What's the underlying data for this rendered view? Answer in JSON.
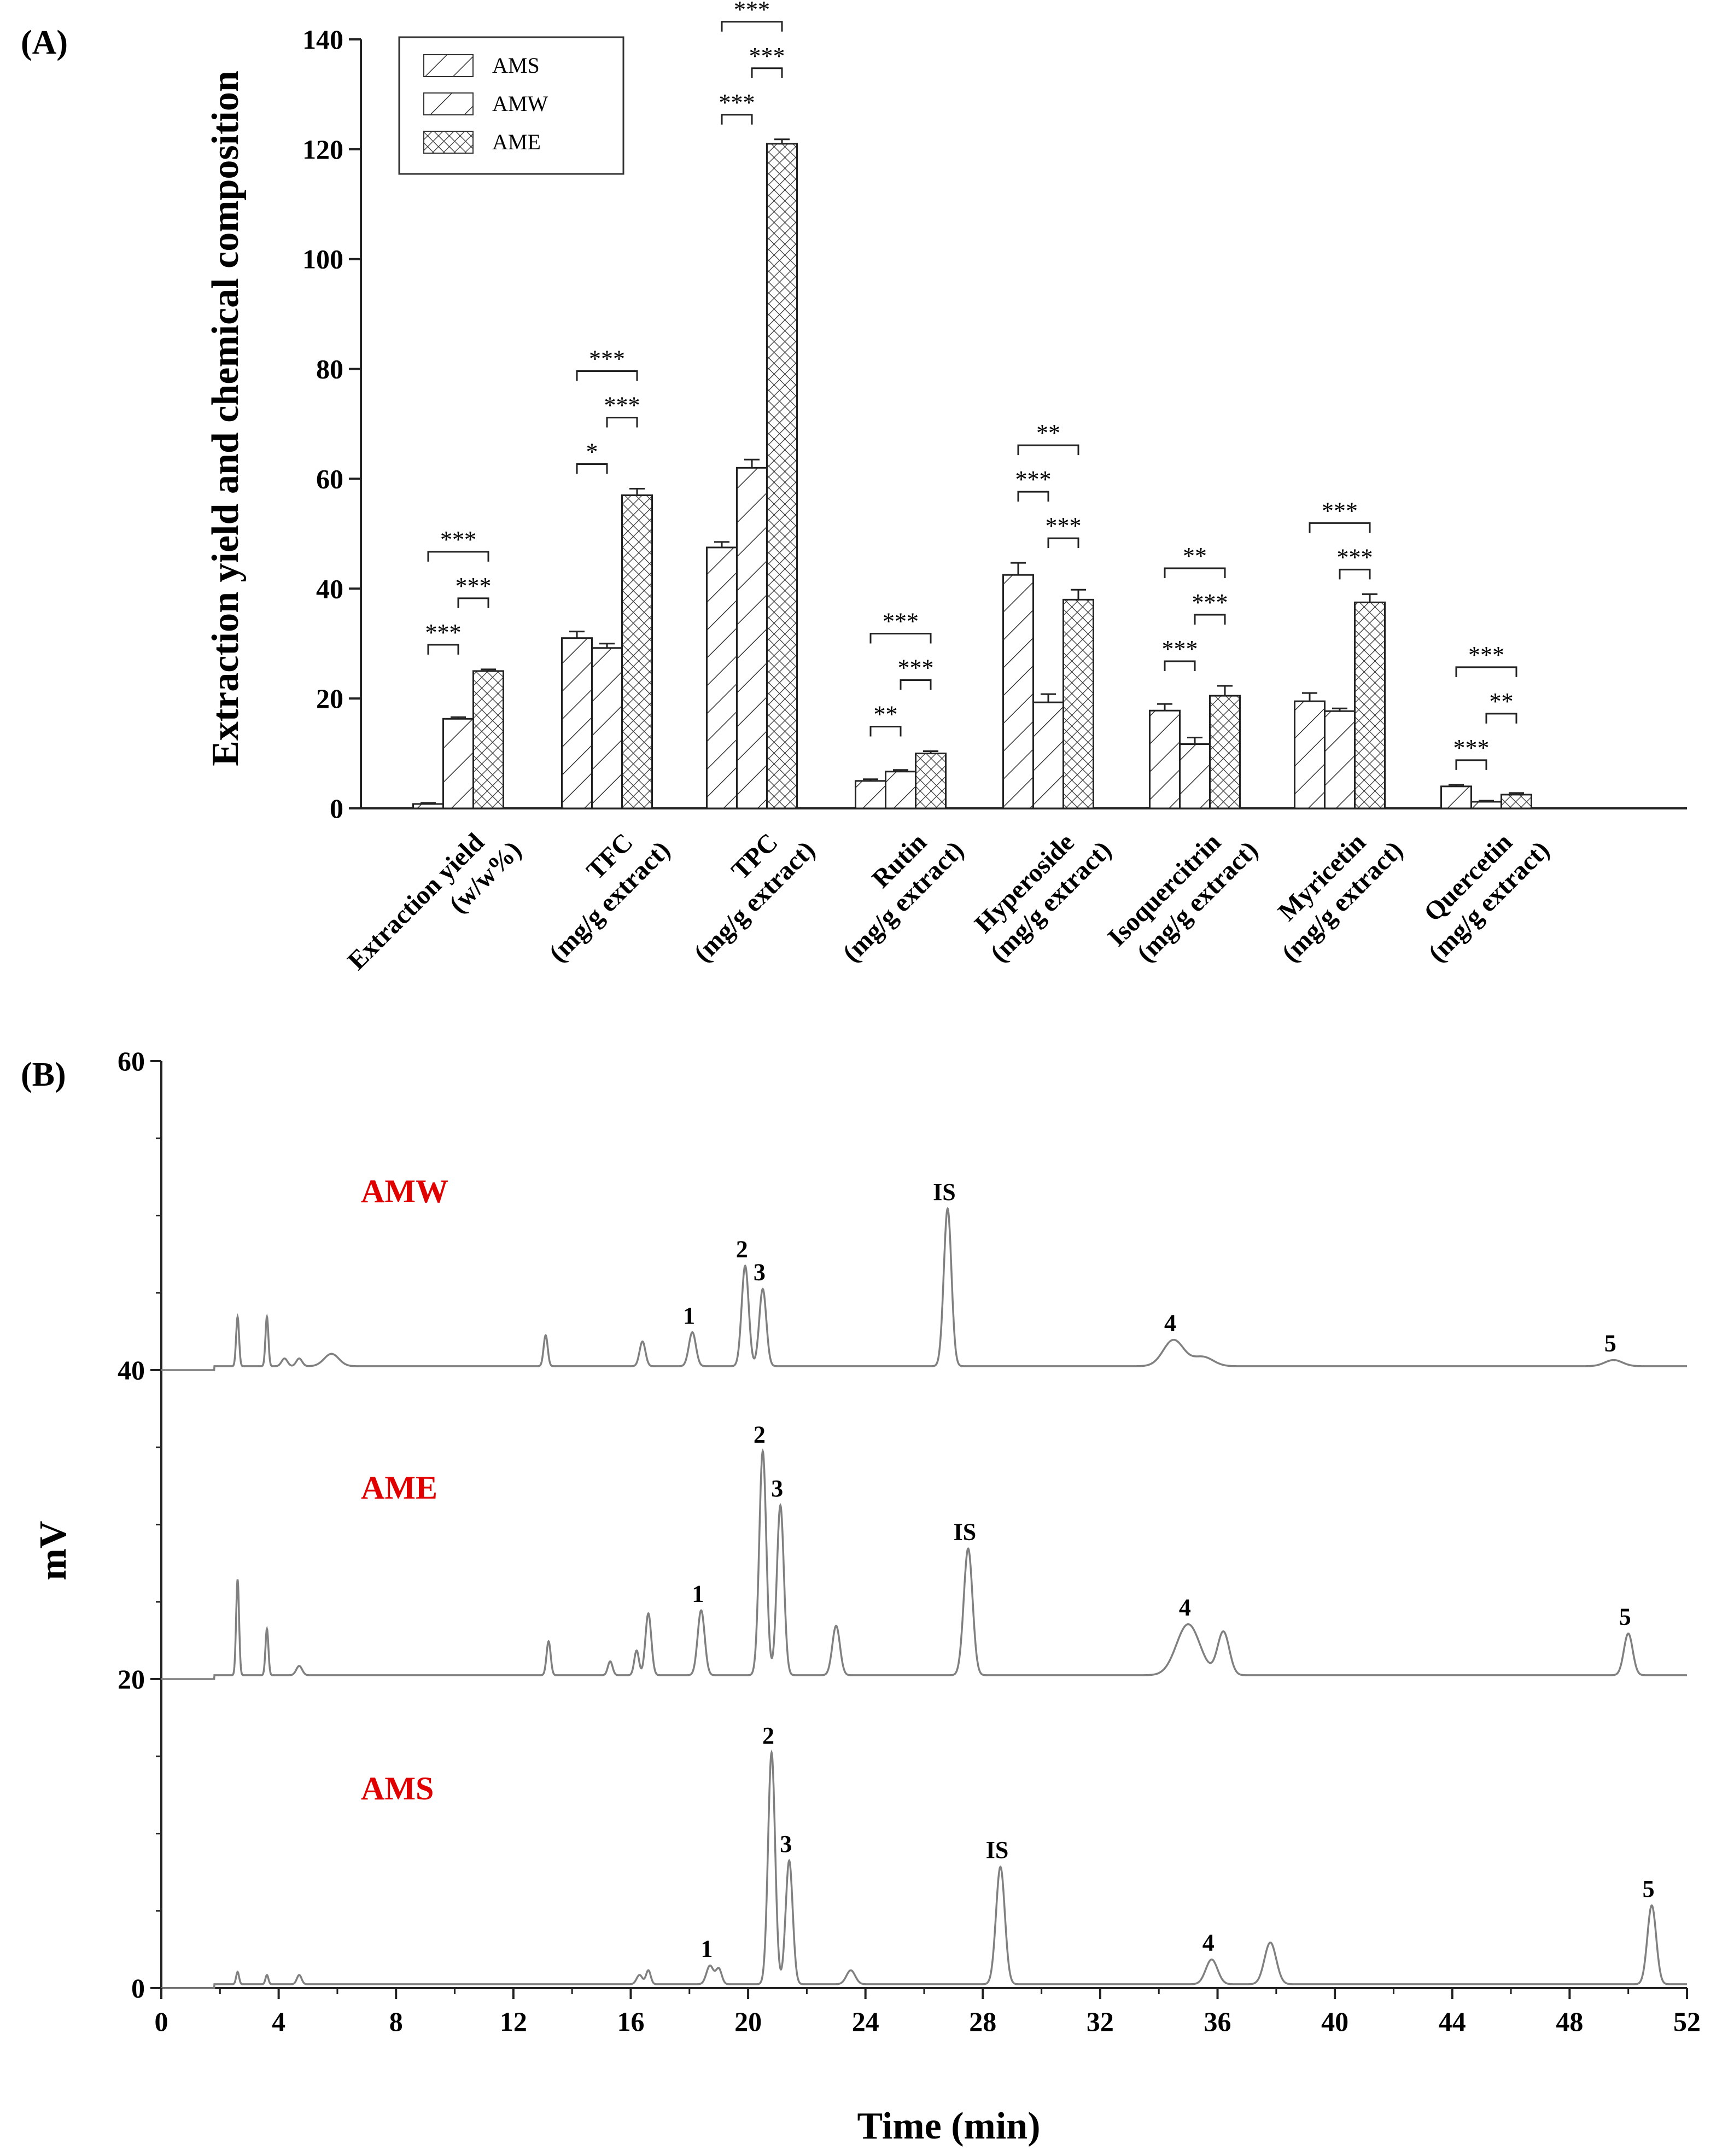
{
  "panel_a_label": "(A)",
  "panel_b_label": "(B)",
  "chart_data": [
    {
      "type": "bar",
      "title": "",
      "ylabel": "Extraction yield and chemical composition",
      "xlabel": "",
      "ylim": [
        0,
        140
      ],
      "yticks": [
        0,
        20,
        40,
        60,
        80,
        100,
        120,
        140
      ],
      "categories": [
        [
          "Extraction yield",
          "(w/w%)"
        ],
        [
          "TFC",
          "(mg/g extract)"
        ],
        [
          "TPC",
          "(mg/g extract)"
        ],
        [
          "Rutin",
          "(mg/g extract)"
        ],
        [
          "Hyperoside",
          "(mg/g extract)"
        ],
        [
          "Isoquercitrin",
          "(mg/g extract)"
        ],
        [
          "Myricetin",
          "(mg/g extract)"
        ],
        [
          "Quercetin",
          "(mg/g extract)"
        ]
      ],
      "legend_position": "top-left",
      "series": [
        {
          "name": "AMS",
          "pattern": "hatch-wide",
          "values": [
            0.8,
            31.0,
            47.5,
            5.0,
            42.5,
            17.8,
            19.5,
            4.0
          ],
          "errors": [
            0.2,
            1.2,
            1.0,
            0.3,
            2.2,
            1.2,
            1.5,
            0.3
          ]
        },
        {
          "name": "AMW",
          "pattern": "hatch-dense",
          "values": [
            16.3,
            29.2,
            62.0,
            6.7,
            19.3,
            11.7,
            17.7,
            1.2
          ],
          "errors": [
            0.3,
            0.8,
            1.5,
            0.3,
            1.5,
            1.2,
            0.5,
            0.2
          ]
        },
        {
          "name": "AME",
          "pattern": "crosshatch",
          "values": [
            25.0,
            57.0,
            121.0,
            10.0,
            38.0,
            20.5,
            37.5,
            2.5
          ],
          "errors": [
            0.3,
            1.2,
            0.8,
            0.4,
            1.8,
            1.8,
            1.5,
            0.3
          ]
        }
      ],
      "significance": [
        {
          "category": 0,
          "pairs": [
            {
              "from": 0,
              "to": 1,
              "label": "***"
            },
            {
              "from": 1,
              "to": 2,
              "label": "***"
            },
            {
              "from": 0,
              "to": 2,
              "label": "***"
            }
          ]
        },
        {
          "category": 1,
          "pairs": [
            {
              "from": 0,
              "to": 1,
              "label": "*"
            },
            {
              "from": 1,
              "to": 2,
              "label": "***"
            },
            {
              "from": 0,
              "to": 2,
              "label": "***"
            }
          ]
        },
        {
          "category": 2,
          "pairs": [
            {
              "from": 0,
              "to": 1,
              "label": "***"
            },
            {
              "from": 1,
              "to": 2,
              "label": "***"
            },
            {
              "from": 0,
              "to": 2,
              "label": "***"
            }
          ]
        },
        {
          "category": 3,
          "pairs": [
            {
              "from": 0,
              "to": 1,
              "label": "**"
            },
            {
              "from": 1,
              "to": 2,
              "label": "***"
            },
            {
              "from": 0,
              "to": 2,
              "label": "***"
            }
          ]
        },
        {
          "category": 4,
          "pairs": [
            {
              "from": 1,
              "to": 2,
              "label": "***"
            },
            {
              "from": 0,
              "to": 1,
              "label": "***"
            },
            {
              "from": 0,
              "to": 2,
              "label": "**"
            }
          ]
        },
        {
          "category": 5,
          "pairs": [
            {
              "from": 0,
              "to": 1,
              "label": "***"
            },
            {
              "from": 1,
              "to": 2,
              "label": "***"
            },
            {
              "from": 0,
              "to": 2,
              "label": "**"
            }
          ]
        },
        {
          "category": 6,
          "pairs": [
            {
              "from": 1,
              "to": 2,
              "label": "***"
            },
            {
              "from": 0,
              "to": 2,
              "label": "***"
            }
          ]
        },
        {
          "category": 7,
          "pairs": [
            {
              "from": 0,
              "to": 1,
              "label": "***"
            },
            {
              "from": 1,
              "to": 2,
              "label": "**"
            },
            {
              "from": 0,
              "to": 2,
              "label": "***"
            }
          ]
        }
      ]
    },
    {
      "type": "line",
      "title": "",
      "xlabel": "Time (min)",
      "ylabel": "mV",
      "xlim": [
        0,
        52
      ],
      "ylim": [
        0,
        60
      ],
      "xticks": [
        0,
        4,
        8,
        12,
        16,
        20,
        24,
        28,
        32,
        36,
        40,
        44,
        48,
        52
      ],
      "yticks": [
        0,
        20,
        40,
        60
      ],
      "line_color": "#808080",
      "label_color": "#e00000",
      "series": [
        {
          "name": "AMW",
          "baseline": 40,
          "peaks": [
            {
              "t": 2.6,
              "h": 3.2,
              "w": 0.05
            },
            {
              "t": 3.6,
              "h": 3.2,
              "w": 0.05
            },
            {
              "t": 4.2,
              "h": 0.5,
              "w": 0.1
            },
            {
              "t": 4.7,
              "h": 0.5,
              "w": 0.1
            },
            {
              "t": 5.8,
              "h": 0.8,
              "w": 0.25
            },
            {
              "t": 13.1,
              "h": 2.0,
              "w": 0.07
            },
            {
              "t": 16.4,
              "h": 1.6,
              "w": 0.1
            },
            {
              "t": 18.1,
              "label": "1",
              "h": 2.2,
              "w": 0.12
            },
            {
              "t": 19.9,
              "label": "2",
              "h": 6.5,
              "w": 0.12
            },
            {
              "t": 20.5,
              "label": "3",
              "h": 5.0,
              "w": 0.12
            },
            {
              "t": 26.8,
              "label": "IS",
              "h": 10.2,
              "w": 0.13
            },
            {
              "t": 34.5,
              "label": "4",
              "h": 1.7,
              "w": 0.35
            },
            {
              "t": 35.5,
              "h": 0.6,
              "w": 0.35
            },
            {
              "t": 49.5,
              "label": "5",
              "h": 0.4,
              "w": 0.3
            }
          ]
        },
        {
          "name": "AME",
          "baseline": 20,
          "peaks": [
            {
              "t": 2.6,
              "h": 6.2,
              "w": 0.05
            },
            {
              "t": 3.6,
              "h": 3.0,
              "w": 0.05
            },
            {
              "t": 4.7,
              "h": 0.6,
              "w": 0.1
            },
            {
              "t": 13.2,
              "h": 2.2,
              "w": 0.07
            },
            {
              "t": 15.3,
              "h": 0.9,
              "w": 0.08
            },
            {
              "t": 16.2,
              "h": 1.6,
              "w": 0.08
            },
            {
              "t": 16.6,
              "h": 4.0,
              "w": 0.1
            },
            {
              "t": 18.4,
              "label": "1",
              "h": 4.2,
              "w": 0.12
            },
            {
              "t": 20.5,
              "label": "2",
              "h": 14.5,
              "w": 0.12
            },
            {
              "t": 21.1,
              "label": "3",
              "h": 11.0,
              "w": 0.12
            },
            {
              "t": 23.0,
              "h": 3.2,
              "w": 0.13
            },
            {
              "t": 27.5,
              "label": "IS",
              "h": 8.2,
              "w": 0.15
            },
            {
              "t": 35.0,
              "label": "4",
              "h": 3.3,
              "w": 0.4
            },
            {
              "t": 36.2,
              "h": 2.8,
              "w": 0.2
            },
            {
              "t": 50.0,
              "label": "5",
              "h": 2.7,
              "w": 0.15
            }
          ]
        },
        {
          "name": "AMS",
          "baseline": 0,
          "peaks": [
            {
              "t": 2.6,
              "h": 0.8,
              "w": 0.05
            },
            {
              "t": 3.6,
              "h": 0.6,
              "w": 0.05
            },
            {
              "t": 4.7,
              "h": 0.6,
              "w": 0.08
            },
            {
              "t": 16.3,
              "h": 0.6,
              "w": 0.1
            },
            {
              "t": 16.6,
              "h": 0.9,
              "w": 0.08
            },
            {
              "t": 18.7,
              "label": "1",
              "h": 1.2,
              "w": 0.12
            },
            {
              "t": 19.0,
              "h": 1.0,
              "w": 0.1
            },
            {
              "t": 20.8,
              "label": "2",
              "h": 15.0,
              "w": 0.12
            },
            {
              "t": 21.4,
              "label": "3",
              "h": 8.0,
              "w": 0.12
            },
            {
              "t": 23.5,
              "h": 0.9,
              "w": 0.15
            },
            {
              "t": 28.6,
              "label": "IS",
              "h": 7.6,
              "w": 0.15
            },
            {
              "t": 35.8,
              "label": "4",
              "h": 1.6,
              "w": 0.2
            },
            {
              "t": 37.8,
              "h": 2.7,
              "w": 0.2
            },
            {
              "t": 50.8,
              "label": "5",
              "h": 5.1,
              "w": 0.15
            }
          ]
        }
      ]
    }
  ]
}
